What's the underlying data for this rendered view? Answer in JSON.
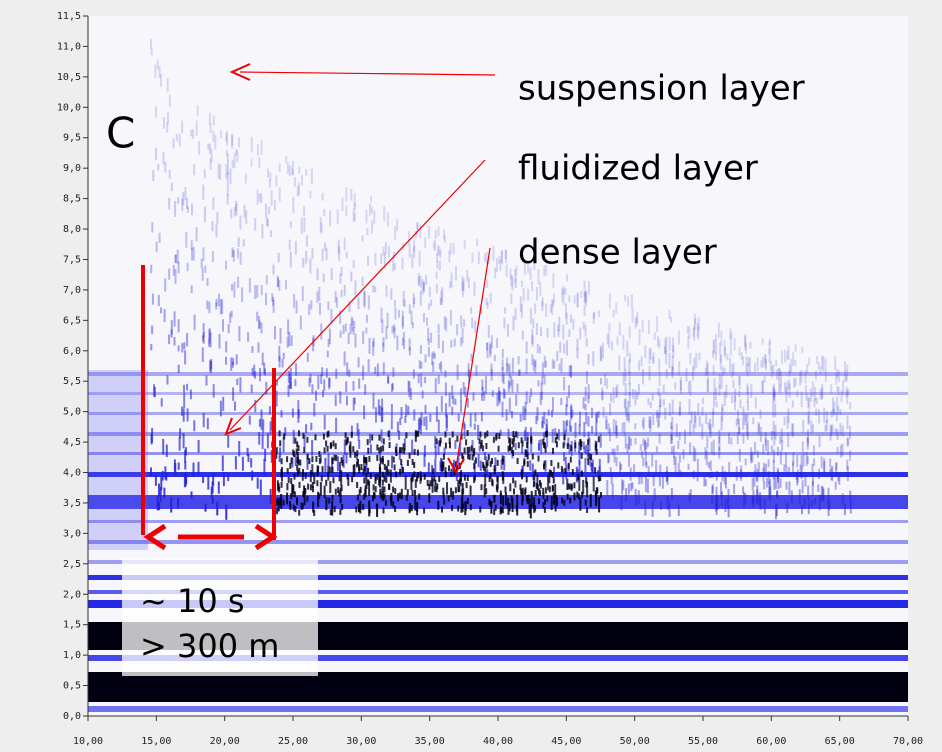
{
  "chart_data": {
    "type": "heatmap",
    "panel_label": "C",
    "annotations": [
      "suspension layer",
      "fluidized layer",
      "dense layer",
      "~ 10 s",
      "> 300 m"
    ],
    "xlim": [
      10,
      70
    ],
    "ylim": [
      0,
      11.5
    ],
    "xticks": [
      {
        "value": 10,
        "label": "10,00"
      },
      {
        "value": 15,
        "label": "15,00"
      },
      {
        "value": 20,
        "label": "20,00"
      },
      {
        "value": 25,
        "label": "25,00"
      },
      {
        "value": 30,
        "label": "30,00"
      },
      {
        "value": 35,
        "label": "35,00"
      },
      {
        "value": 40,
        "label": "40,00"
      },
      {
        "value": 45,
        "label": "45,00"
      },
      {
        "value": 50,
        "label": "50,00"
      },
      {
        "value": 55,
        "label": "55,00"
      },
      {
        "value": 60,
        "label": "60,00"
      },
      {
        "value": 65,
        "label": "65,00"
      },
      {
        "value": 70,
        "label": "70,00"
      }
    ],
    "yticks": [
      {
        "value": 0,
        "label": "0,0"
      },
      {
        "value": 0.5,
        "label": "0,5"
      },
      {
        "value": 1,
        "label": "1,0"
      },
      {
        "value": 1.5,
        "label": "1,5"
      },
      {
        "value": 2,
        "label": "2,0"
      },
      {
        "value": 2.5,
        "label": "2,5"
      },
      {
        "value": 3,
        "label": "3,0"
      },
      {
        "value": 3.5,
        "label": "3,5"
      },
      {
        "value": 4,
        "label": "4,0"
      },
      {
        "value": 4.5,
        "label": "4,5"
      },
      {
        "value": 5,
        "label": "5,0"
      },
      {
        "value": 5.5,
        "label": "5,5"
      },
      {
        "value": 6,
        "label": "6,0"
      },
      {
        "value": 6.5,
        "label": "6,5"
      },
      {
        "value": 7,
        "label": "7,0"
      },
      {
        "value": 7.5,
        "label": "7,5"
      },
      {
        "value": 8,
        "label": "8,0"
      },
      {
        "value": 8.5,
        "label": "8,5"
      },
      {
        "value": 9,
        "label": "9,0"
      },
      {
        "value": 9.5,
        "label": "9,5"
      },
      {
        "value": 10,
        "label": "10,0"
      },
      {
        "value": 10.5,
        "label": "10,5"
      },
      {
        "value": 11,
        "label": "11,0"
      },
      {
        "value": 11.5,
        "label": "11,5"
      }
    ]
  }
}
